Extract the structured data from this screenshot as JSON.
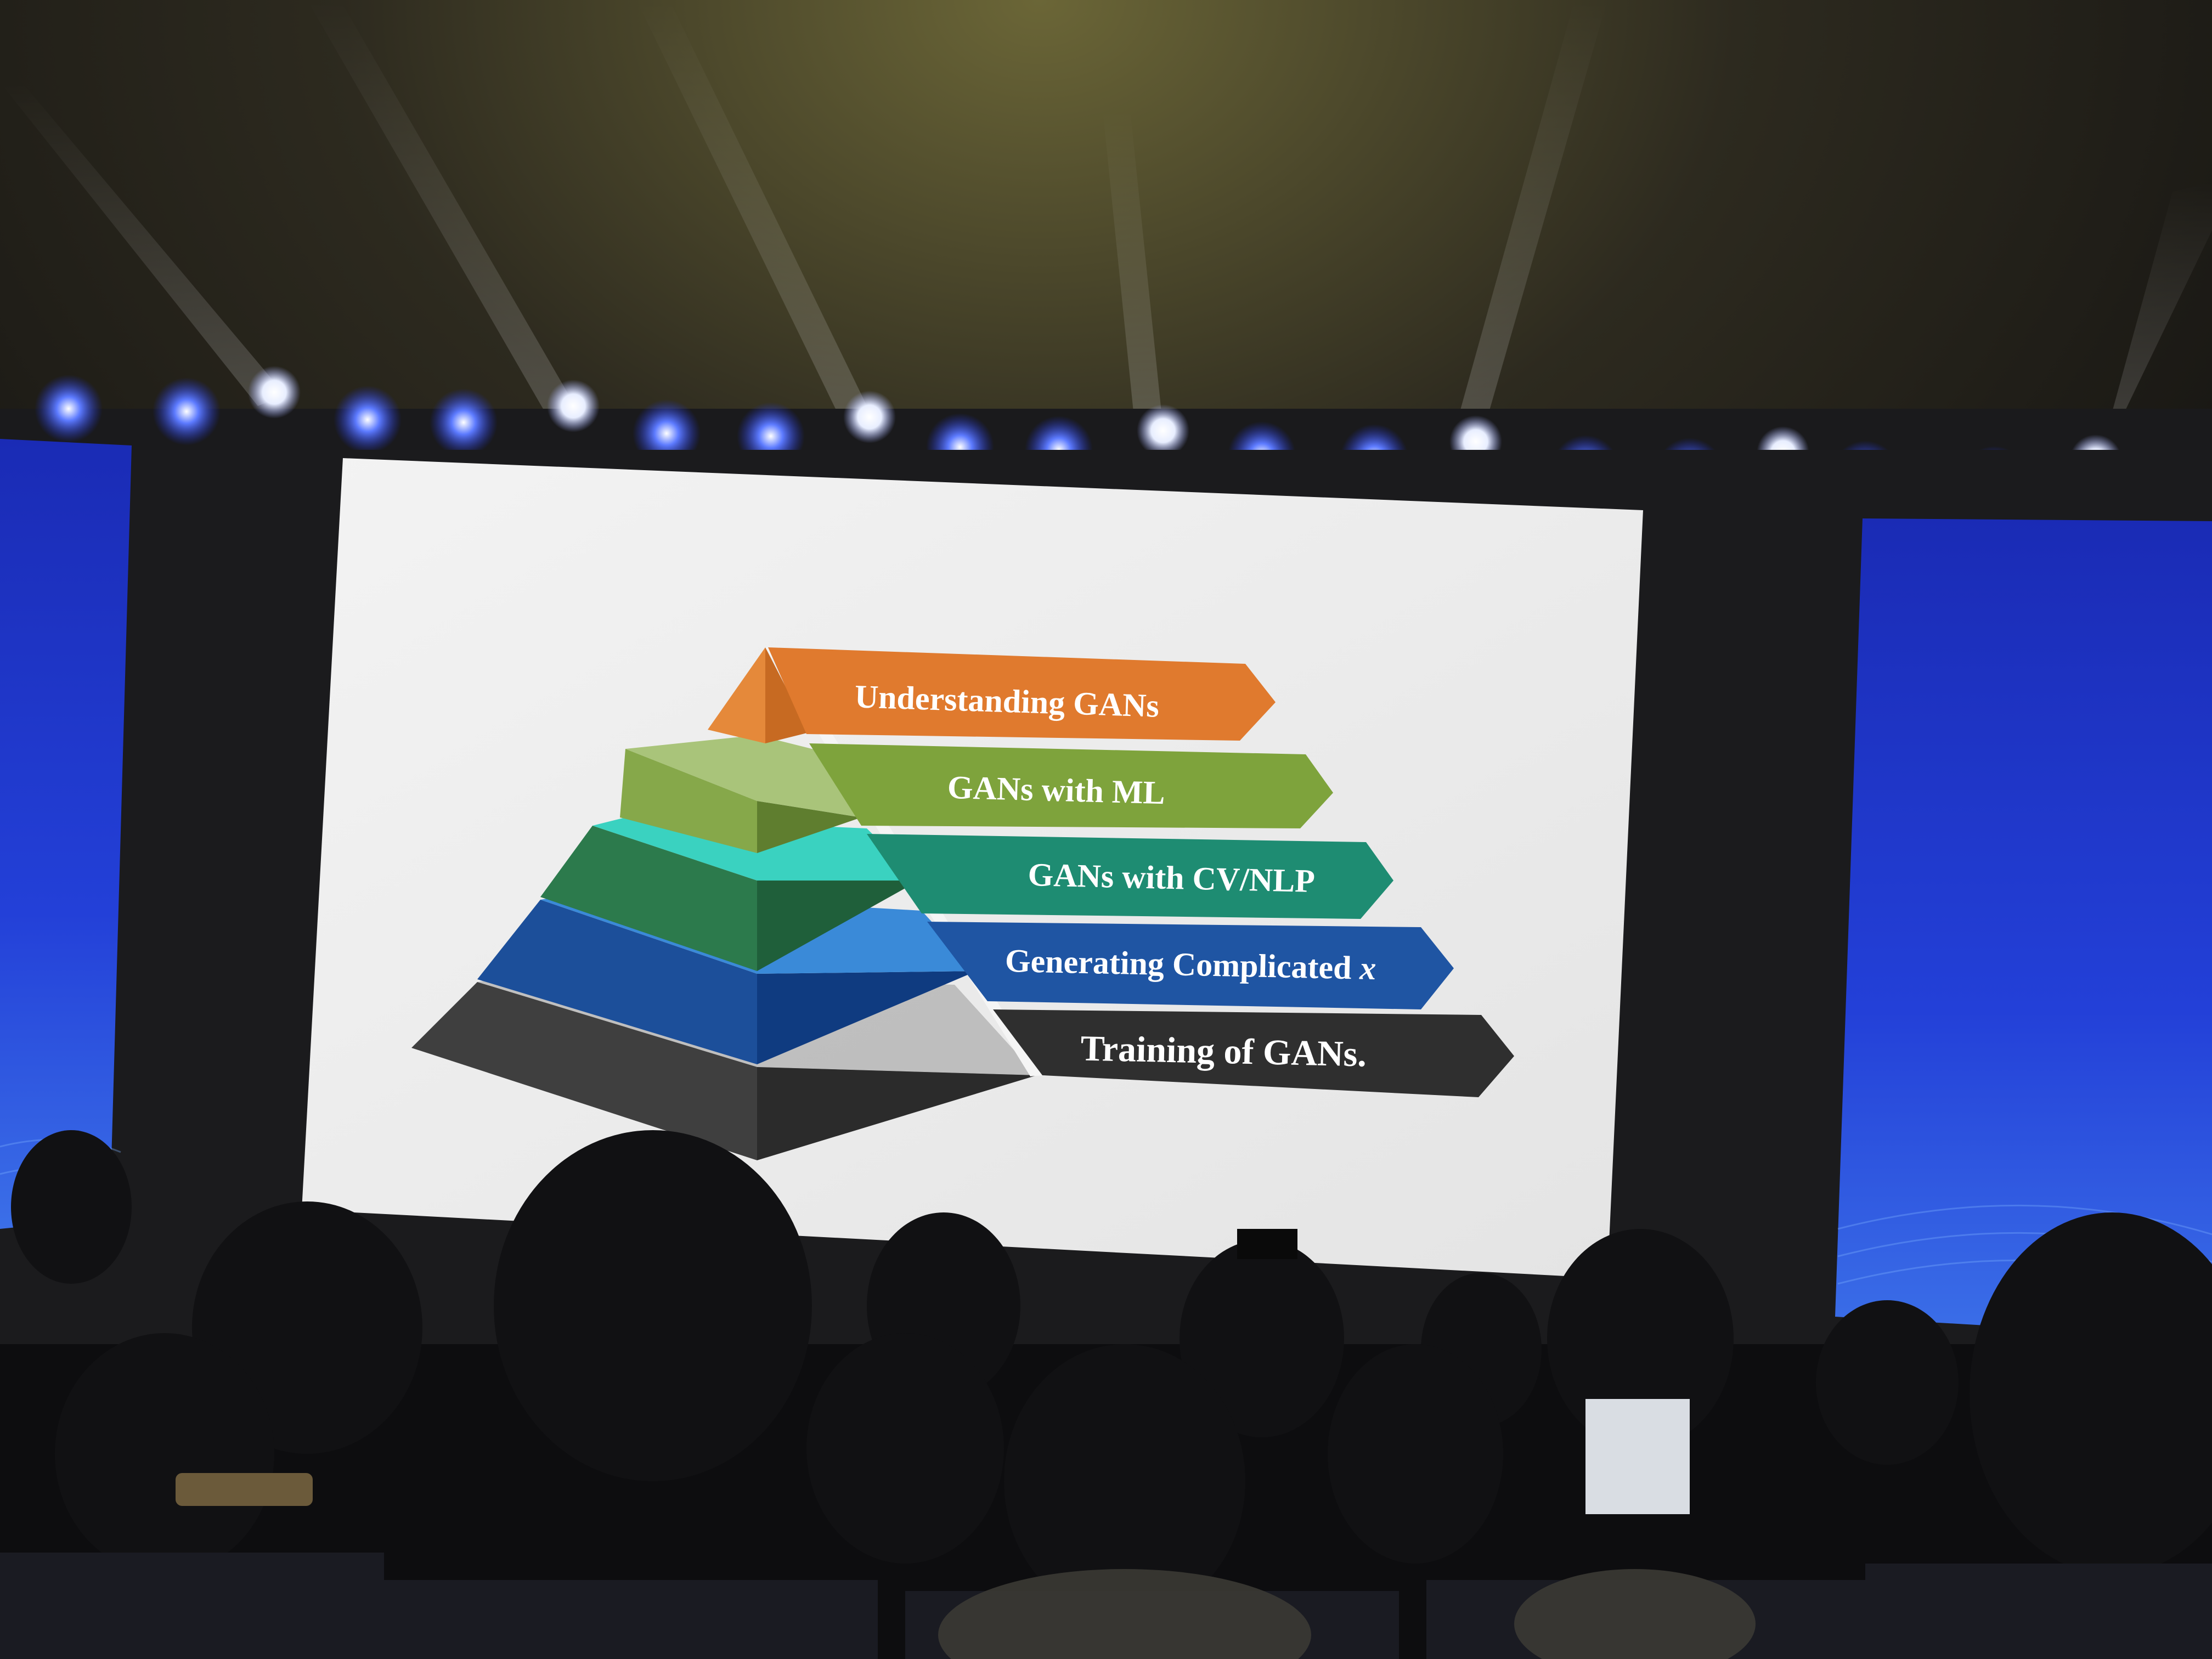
{
  "slide": {
    "layers": [
      {
        "label": "Understanding GANs",
        "color": "#e07a2e"
      },
      {
        "label": "GANs with ML",
        "color": "#7ea33c"
      },
      {
        "label": "GANs with CV/NLP",
        "color": "#1e8c72"
      },
      {
        "label": "Generating Complicated ",
        "label_var": "x",
        "color": "#1f55a3"
      },
      {
        "label": "Training of GANs.",
        "color": "#2f2f2f"
      }
    ]
  },
  "colors": {
    "screen_white": "#eeeeee",
    "side_screen_blue": "#1f35c9",
    "stage_light_blue": "#3b5bff",
    "stage_light_white": "#f2f6ff",
    "background": "#141210"
  }
}
